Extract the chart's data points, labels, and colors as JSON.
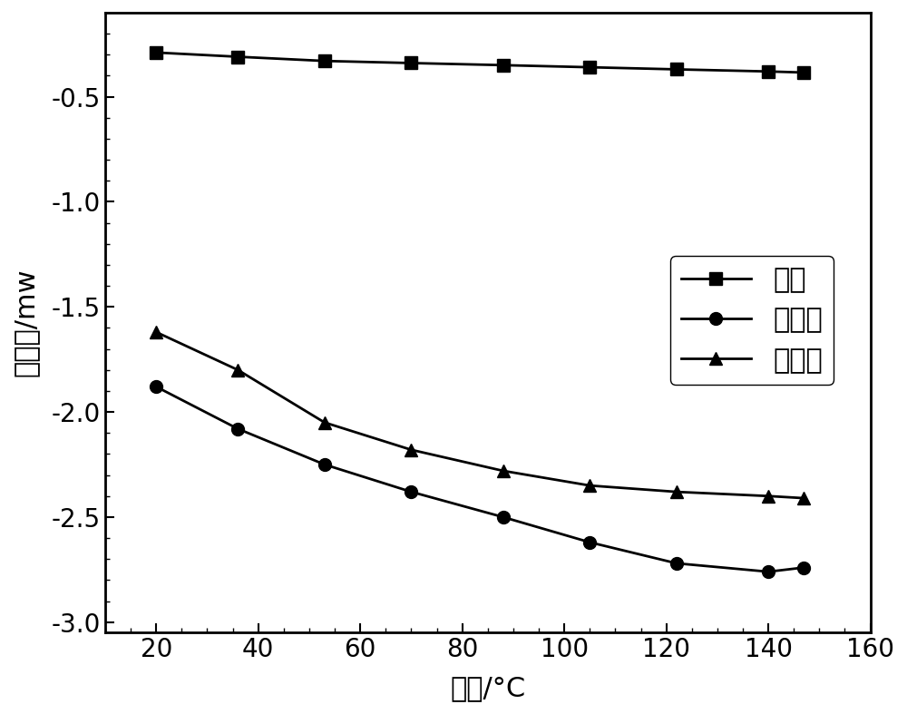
{
  "baseline_x": [
    20,
    36,
    53,
    70,
    88,
    105,
    122,
    140,
    147
  ],
  "baseline_y": [
    -0.29,
    -0.31,
    -0.33,
    -0.34,
    -0.35,
    -0.36,
    -0.37,
    -0.38,
    -0.385
  ],
  "reference_x": [
    20,
    36,
    53,
    70,
    88,
    105,
    122,
    140,
    147
  ],
  "reference_y": [
    -1.88,
    -2.08,
    -2.25,
    -2.38,
    -2.5,
    -2.62,
    -2.72,
    -2.76,
    -2.74
  ],
  "sample_x": [
    20,
    36,
    53,
    70,
    88,
    105,
    122,
    140,
    147
  ],
  "sample_y": [
    -1.62,
    -1.8,
    -2.05,
    -2.18,
    -2.28,
    -2.35,
    -2.38,
    -2.4,
    -2.41
  ],
  "xlabel": "温度/°C",
  "ylabel": "热流率/mw",
  "xlim": [
    10,
    160
  ],
  "ylim": [
    -3.05,
    -0.1
  ],
  "xticks": [
    20,
    40,
    60,
    80,
    100,
    120,
    140,
    160
  ],
  "yticks": [
    -3.0,
    -2.5,
    -2.0,
    -1.5,
    -1.0,
    -0.5
  ],
  "legend_labels": [
    "基线",
    "参比线",
    "样品线"
  ],
  "line_color": "#000000",
  "bg_color": "#ffffff",
  "tick_fontsize": 20,
  "label_fontsize": 22,
  "legend_fontsize": 22
}
